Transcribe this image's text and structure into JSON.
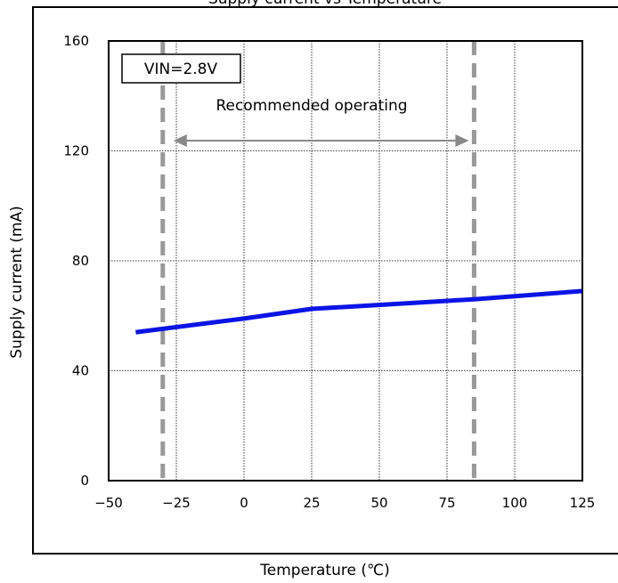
{
  "chart_data": {
    "type": "line",
    "title": "Supply current vs Temperature",
    "xlabel": "Temperature (℃)",
    "ylabel": "Supply current (mA)",
    "xlim": [
      -50,
      125
    ],
    "ylim": [
      0,
      160
    ],
    "xticks": [
      -50,
      -25,
      0,
      25,
      50,
      75,
      100,
      125
    ],
    "yticks": [
      0,
      40,
      80,
      120,
      160
    ],
    "xtick_labels": [
      "−50",
      "−25",
      "0",
      "25",
      "50",
      "75",
      "100",
      "125"
    ],
    "ytick_labels": [
      "0",
      "40",
      "80",
      "120",
      "160"
    ],
    "grid": true,
    "series": [
      {
        "color": "#0a14e6",
        "x": [
          -40,
          0,
          25,
          85,
          125
        ],
        "y": [
          54,
          59,
          62.5,
          66,
          69
        ]
      }
    ],
    "condition_label": "VIN=2.8V",
    "recommended_range": {
      "label": "Recommended operating",
      "from": -30,
      "to": 85,
      "line_color": "#999999"
    }
  }
}
